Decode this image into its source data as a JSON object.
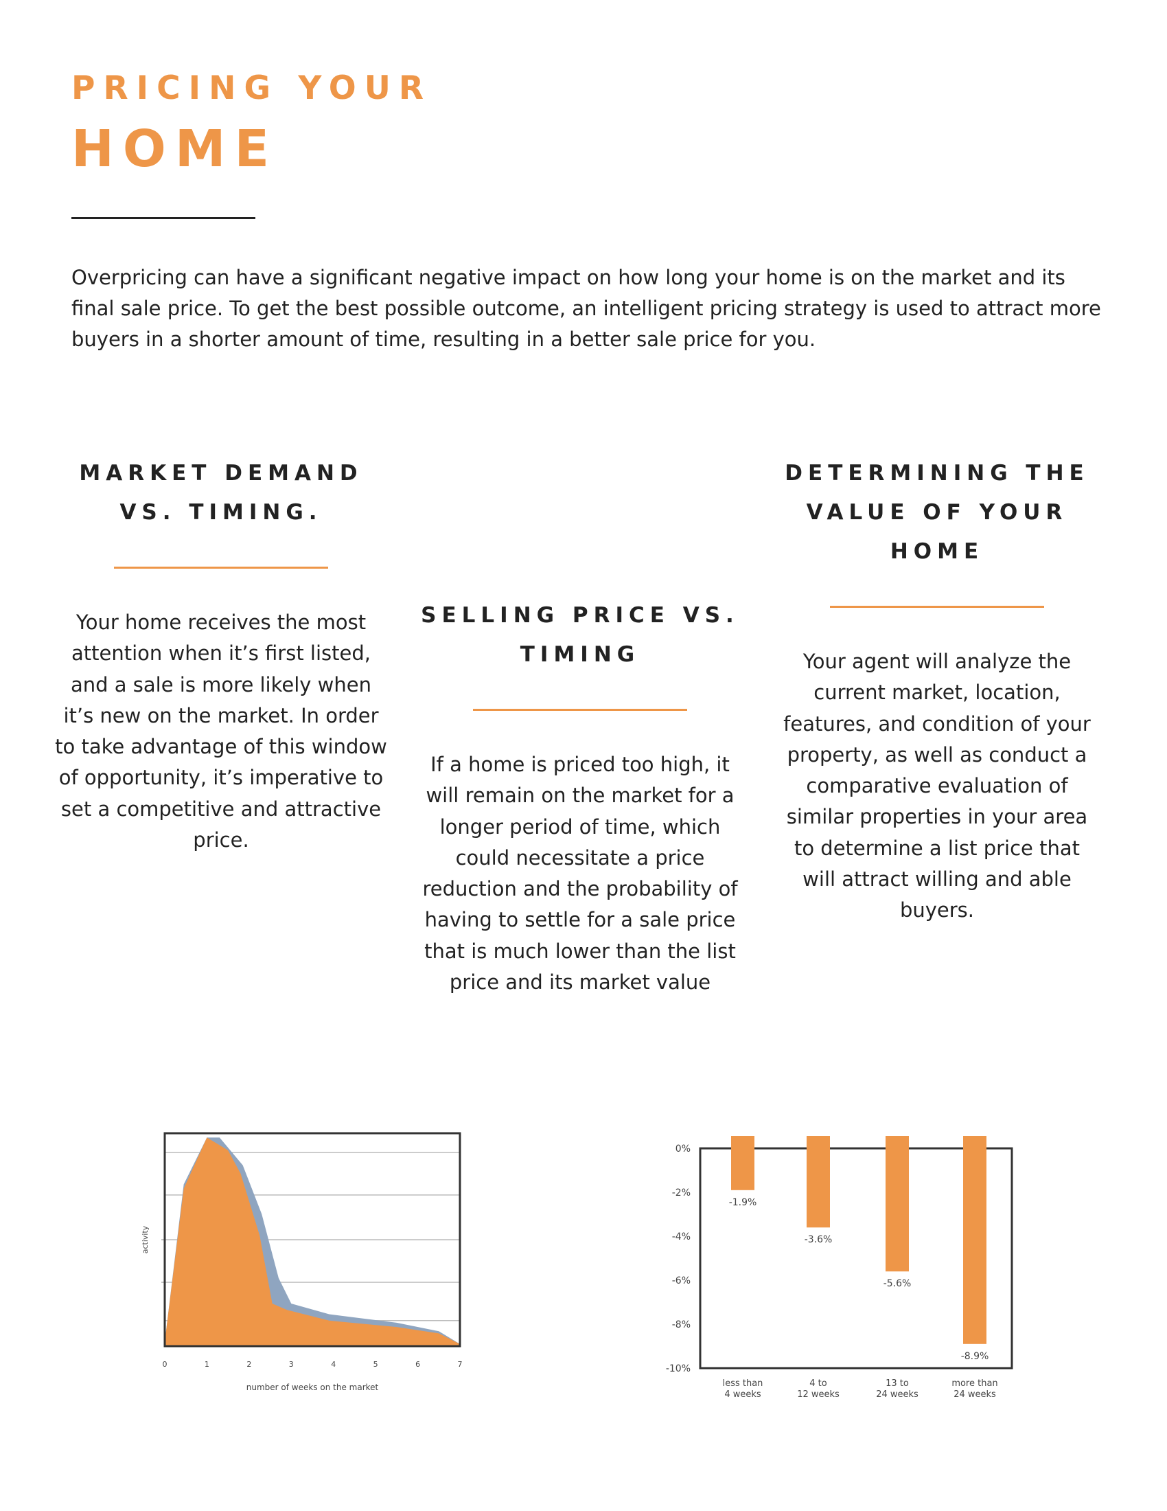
{
  "header": {
    "title_line1": "PRICING YOUR",
    "title_line2": "HOME"
  },
  "intro": "Overpricing can have a significant negative impact on how long your home is on the market and its final sale price. To get the best possible outcome, an intelligent pricing strategy is used to attract more buyers in a shorter amount of time, resulting in a better sale price for you.",
  "columns": [
    {
      "heading": "MARKET DEMAND VS. TIMING.",
      "body": "Your home receives the most attention when it’s first listed, and a sale is more likely when it’s new on the market. In order to take advantage of this window of opportunity, it’s imperative to set a competitive and attractive price."
    },
    {
      "heading": "SELLING PRICE VS. TIMING",
      "body": "If a home is priced too high, it will remain on the market for a longer period of time, which could necessitate a price reduction and the probability of having to settle for a sale price that is much lower than the list price and its market value"
    },
    {
      "heading": "DETERMINING THE VALUE OF YOUR HOME",
      "body": "Your agent will analyze the current market, location, features, and condition of your property, as well as conduct a comparative evaluation of similar properties in your area to determine a list price that will attract willing and able buyers."
    }
  ],
  "colors": {
    "accent": "#ee9648",
    "secondary": "#8fa5c0",
    "text": "#222222"
  },
  "chart_data": [
    {
      "type": "area",
      "title": "",
      "xlabel": "number of weeks on the market",
      "ylabel": "activity",
      "x_ticks": [
        "0",
        "1",
        "2",
        "3",
        "4",
        "5",
        "6",
        "7"
      ],
      "xlim": [
        0,
        7
      ],
      "ylim": [
        0,
        1
      ],
      "grid": true,
      "series": [
        {
          "color": "#8fa5c0",
          "points": [
            [
              0,
              0.02
            ],
            [
              0.45,
              0.76
            ],
            [
              1.0,
              0.98
            ],
            [
              1.3,
              0.98
            ],
            [
              1.85,
              0.85
            ],
            [
              2.3,
              0.62
            ],
            [
              2.7,
              0.32
            ],
            [
              3.0,
              0.2
            ],
            [
              3.9,
              0.15
            ],
            [
              5.5,
              0.11
            ],
            [
              6.5,
              0.07
            ],
            [
              7.0,
              0.01
            ]
          ]
        },
        {
          "color": "#ee9648",
          "points": [
            [
              0,
              0.02
            ],
            [
              0.45,
              0.74
            ],
            [
              1.0,
              0.98
            ],
            [
              1.5,
              0.92
            ],
            [
              1.8,
              0.81
            ],
            [
              2.25,
              0.52
            ],
            [
              2.55,
              0.2
            ],
            [
              2.9,
              0.17
            ],
            [
              3.9,
              0.12
            ],
            [
              5.5,
              0.09
            ],
            [
              6.5,
              0.06
            ],
            [
              7.0,
              0.01
            ]
          ]
        }
      ]
    },
    {
      "type": "bar",
      "title": "",
      "xlabel": "",
      "ylabel": "",
      "categories": [
        "less than 4 weeks",
        "4 to 12 weeks",
        "13 to 24 weeks",
        "more than 24 weeks"
      ],
      "values": [
        -1.9,
        -3.6,
        -5.6,
        -8.9
      ],
      "value_labels": [
        "-1.9%",
        "-3.6%",
        "-5.6%",
        "-8.9%"
      ],
      "y_ticks": [
        "0%",
        "-2%",
        "-4%",
        "-6%",
        "-8%",
        "-10%"
      ],
      "ylim": [
        -10,
        0
      ],
      "grid": false,
      "color": "#ee9648"
    }
  ]
}
